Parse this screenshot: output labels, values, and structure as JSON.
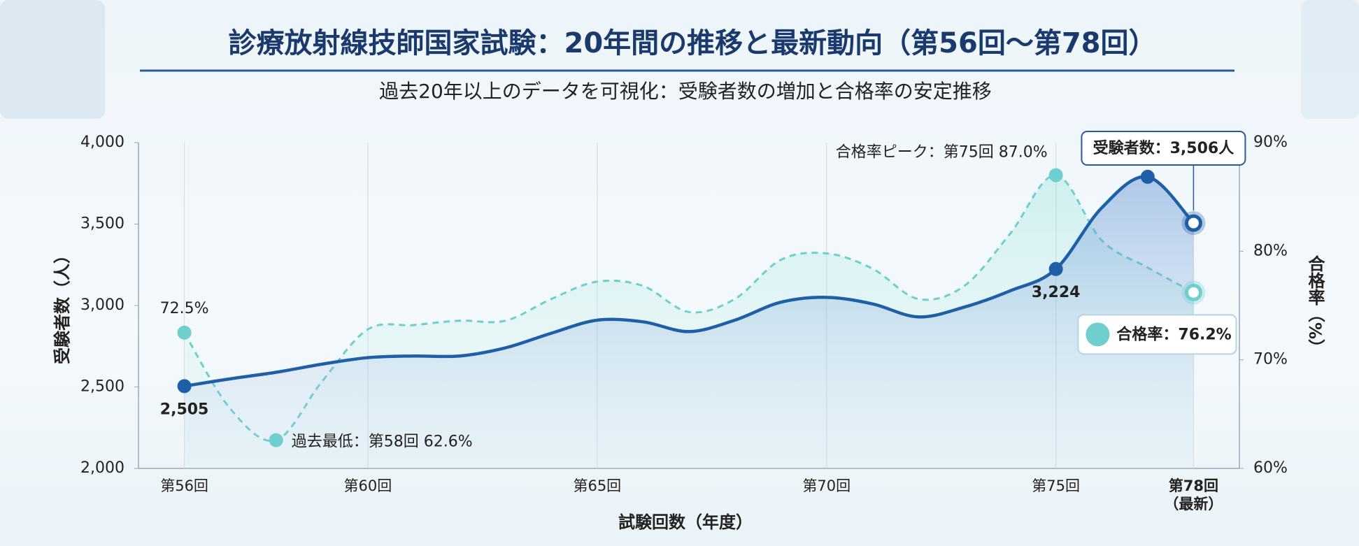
{
  "chart_data": {
    "type": "line",
    "title": "診療放射線技師国家試験：20年間の推移と最新動向（第56回〜第78回）",
    "subtitle": "過去20年以上のデータを可視化：受験者数の増加と合格率の安定推移",
    "x_label": "試験回数（年度）",
    "y_label": "受験者数（人）",
    "y2_label": "合格率（%）",
    "x": [
      56,
      57,
      58,
      59,
      60,
      61,
      62,
      63,
      64,
      65,
      66,
      67,
      68,
      69,
      70,
      71,
      72,
      73,
      74,
      75,
      76,
      77,
      78
    ],
    "xlim": [
      55,
      79
    ],
    "xticks": [
      {
        "value": 56,
        "label": "第56回"
      },
      {
        "value": 60,
        "label": "第60回"
      },
      {
        "value": 65,
        "label": "第65回"
      },
      {
        "value": 70,
        "label": "第70回"
      },
      {
        "value": 75,
        "label": "第75回"
      },
      {
        "value": 78,
        "label": "第78回\n（最新）"
      }
    ],
    "ylim": [
      2000,
      4000
    ],
    "yticks": [
      {
        "value": 2000,
        "label": "2,000"
      },
      {
        "value": 2500,
        "label": "2,500"
      },
      {
        "value": 3000,
        "label": "3,000"
      },
      {
        "value": 3500,
        "label": "3,500"
      },
      {
        "value": 4000,
        "label": "4,000"
      }
    ],
    "y2lim": [
      60,
      90
    ],
    "y2ticks": [
      {
        "value": 60,
        "label": "60%"
      },
      {
        "value": 70,
        "label": "70%"
      },
      {
        "value": 80,
        "label": "80%"
      },
      {
        "value": 90,
        "label": "90%"
      }
    ],
    "grid": true,
    "series": [
      {
        "name": "受験者数",
        "color": "#1f5fa8",
        "axis": "y",
        "values": [
          2505,
          2550,
          2590,
          2640,
          2680,
          2690,
          2690,
          2740,
          2830,
          2910,
          2900,
          2840,
          2910,
          3020,
          3050,
          3010,
          2930,
          2990,
          3090,
          3224,
          3600,
          3790,
          3506
        ],
        "value_labels": [
          "2,505",
          null,
          null,
          null,
          null,
          null,
          null,
          null,
          null,
          null,
          null,
          null,
          null,
          null,
          null,
          null,
          null,
          null,
          null,
          "3,224",
          null,
          null,
          null
        ]
      },
      {
        "name": "合格率",
        "color": "#6fcfcf",
        "axis": "y2",
        "values": [
          72.5,
          65.5,
          62.6,
          68.0,
          72.8,
          73.2,
          73.6,
          73.6,
          75.6,
          77.2,
          76.8,
          74.4,
          75.6,
          79.2,
          79.8,
          78.4,
          75.6,
          76.8,
          81.6,
          87.0,
          81.0,
          78.5,
          76.2
        ],
        "value_labels": [
          "72.5%",
          null,
          null,
          null,
          null,
          null,
          null,
          null,
          null,
          null,
          null,
          null,
          null,
          null,
          null,
          null,
          null,
          null,
          null,
          null,
          null,
          null,
          null
        ]
      }
    ],
    "annotations": [
      "過去最低：第58回 62.6%",
      "合格率ピーク：第75回 87.0%"
    ],
    "callouts": [
      "受験者数：3,506人",
      "合格率：76.2%"
    ]
  }
}
